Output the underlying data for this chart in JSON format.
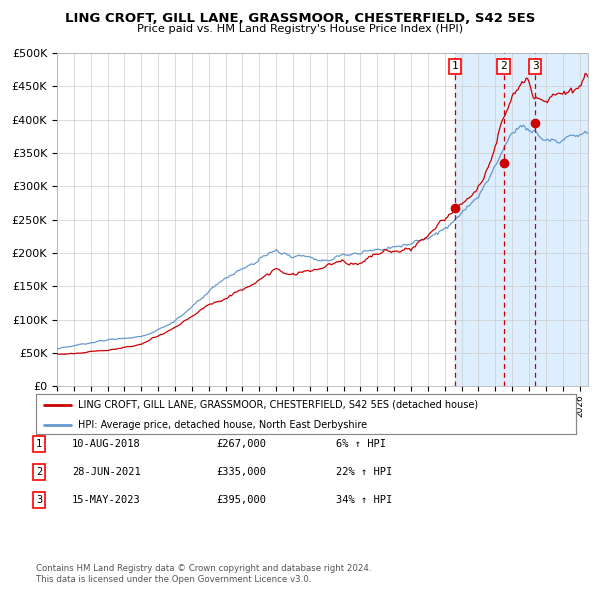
{
  "title": "LING CROFT, GILL LANE, GRASSMOOR, CHESTERFIELD, S42 5ES",
  "subtitle": "Price paid vs. HM Land Registry's House Price Index (HPI)",
  "legend_line1": "LING CROFT, GILL LANE, GRASSMOOR, CHESTERFIELD, S42 5ES (detached house)",
  "legend_line2": "HPI: Average price, detached house, North East Derbyshire",
  "footer1": "Contains HM Land Registry data © Crown copyright and database right 2024.",
  "footer2": "This data is licensed under the Open Government Licence v3.0.",
  "transactions": [
    {
      "num": 1,
      "date": "10-AUG-2018",
      "price": 267000,
      "pct": "6%",
      "dir": "↑"
    },
    {
      "num": 2,
      "date": "28-JUN-2021",
      "price": 335000,
      "pct": "22%",
      "dir": "↑"
    },
    {
      "num": 3,
      "date": "15-MAY-2023",
      "price": 395000,
      "pct": "34%",
      "dir": "↑"
    }
  ],
  "transaction_dates_decimal": [
    2018.608,
    2021.493,
    2023.371
  ],
  "transaction_prices": [
    267000,
    335000,
    395000
  ],
  "hpi_color": "#6699cc",
  "price_color": "#cc0000",
  "marker_color": "#cc0000",
  "vline_color": "#cc0000",
  "bg_shaded_color": "#ddeeff",
  "ylim": [
    0,
    500000
  ],
  "xlim_start": 1995.0,
  "xlim_end": 2026.5,
  "shade_start": 2018.608,
  "shade_end": 2026.5
}
